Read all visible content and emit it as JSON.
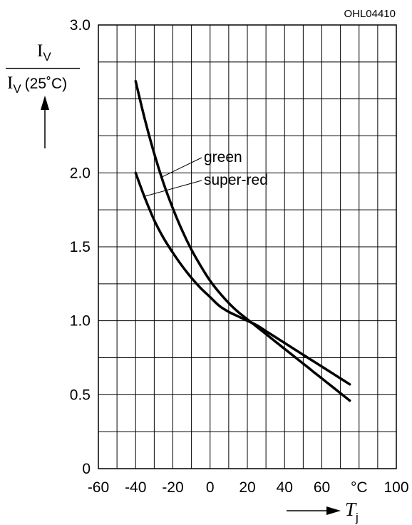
{
  "figure_code": "OHL04410",
  "chart_data": {
    "type": "line",
    "x_ticks": [
      "-60",
      "-40",
      "-20",
      "0",
      "20",
      "40",
      "60",
      "°C",
      "100"
    ],
    "y_ticks": [
      "0",
      "0.5",
      "1.0",
      "1.5",
      "2.0",
      "3.0"
    ],
    "xlim": [
      -60,
      100
    ],
    "ylim": [
      0,
      3.0
    ],
    "grid": true,
    "ylabel": {
      "numerator_symbol": "I",
      "numerator_sub": "V",
      "denominator_symbol": "I",
      "denominator_sub": "V",
      "denominator_suffix": "(25˚C)"
    },
    "xlabel": {
      "symbol": "T",
      "sub": "j"
    },
    "series": [
      {
        "name": "green",
        "x": [
          -40,
          -35,
          -30,
          -25,
          -20,
          -15,
          -10,
          -5,
          0,
          5,
          10,
          15,
          20,
          25,
          30,
          35,
          40,
          45,
          50,
          55,
          60,
          65,
          70,
          75
        ],
        "y": [
          2.62,
          2.36,
          2.13,
          1.93,
          1.76,
          1.61,
          1.48,
          1.37,
          1.27,
          1.19,
          1.12,
          1.06,
          1.01,
          0.96,
          0.91,
          0.86,
          0.81,
          0.76,
          0.71,
          0.66,
          0.61,
          0.56,
          0.51,
          0.46
        ]
      },
      {
        "name": "super-red",
        "x": [
          -40,
          -35,
          -30,
          -25,
          -20,
          -15,
          -10,
          -5,
          0,
          5,
          10,
          15,
          20,
          25,
          30,
          35,
          40,
          45,
          50,
          55,
          60,
          65,
          70,
          75
        ],
        "y": [
          2.0,
          1.83,
          1.68,
          1.56,
          1.46,
          1.37,
          1.29,
          1.22,
          1.16,
          1.1,
          1.06,
          1.03,
          1.0,
          0.97,
          0.93,
          0.89,
          0.85,
          0.81,
          0.77,
          0.73,
          0.69,
          0.65,
          0.61,
          0.57
        ]
      }
    ]
  }
}
